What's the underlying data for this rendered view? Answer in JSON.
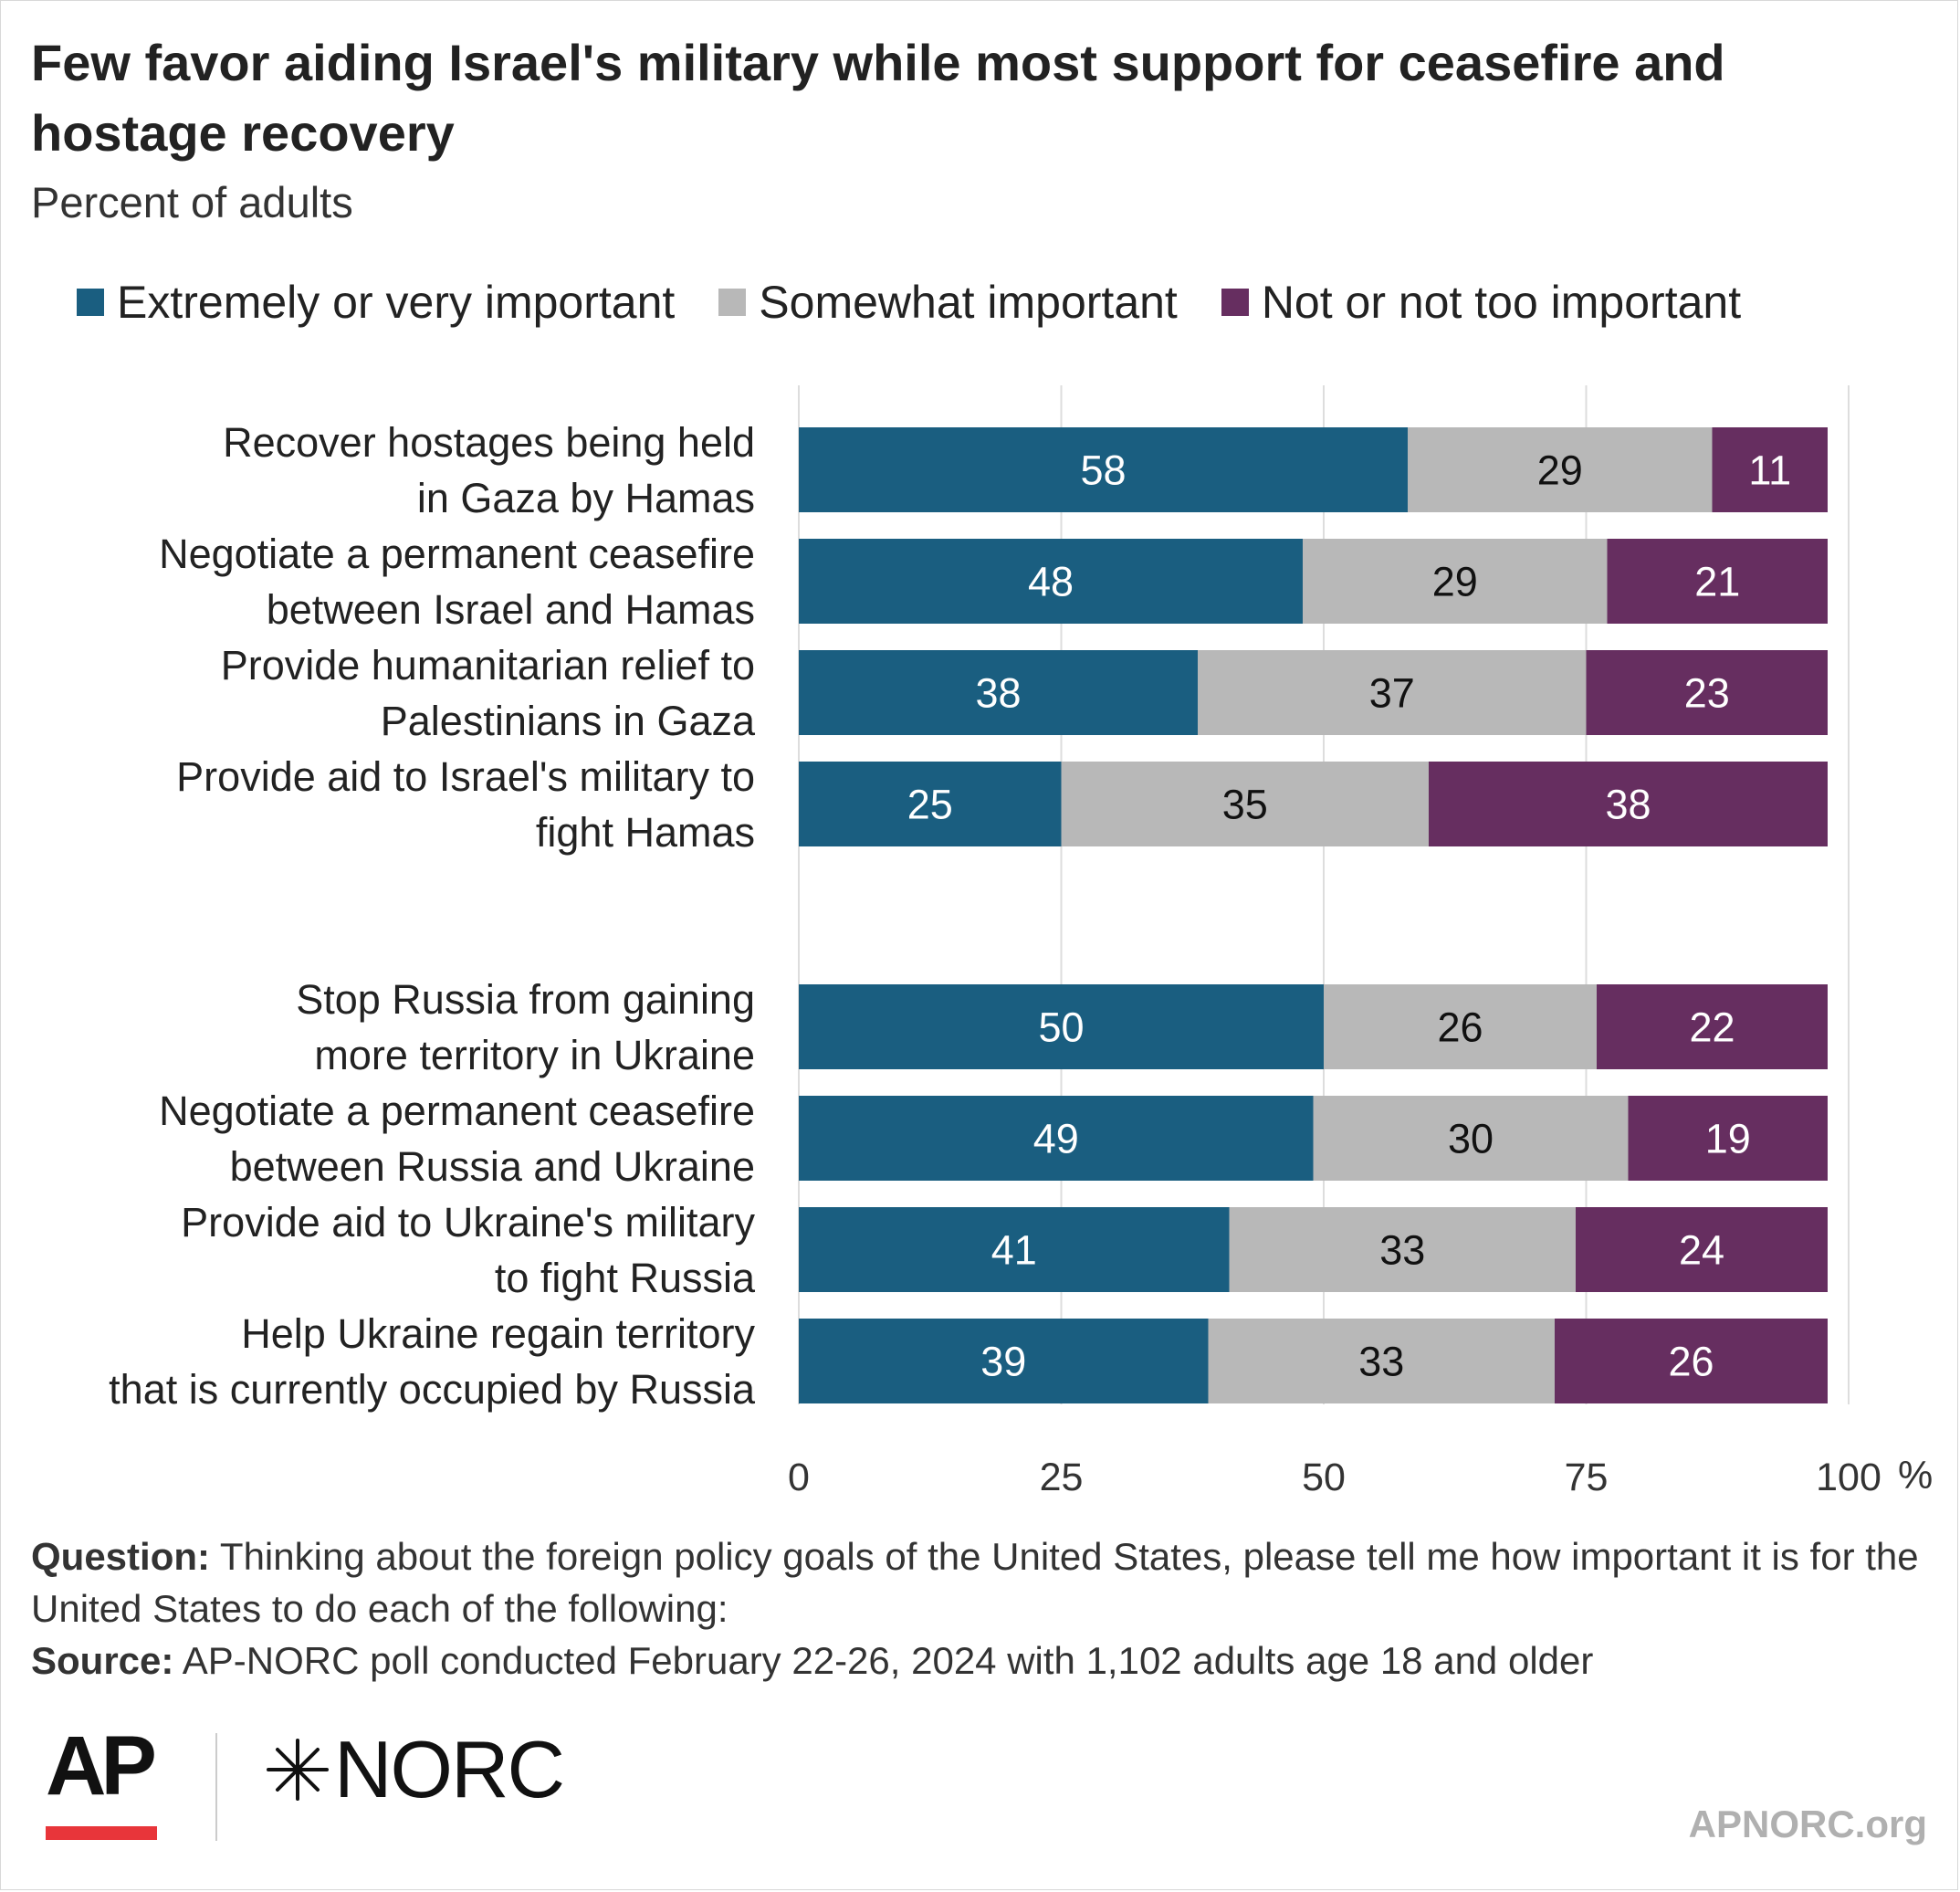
{
  "header": {
    "title": "Few favor aiding Israel's military while most support for ceasefire and hostage recovery",
    "subtitle": "Percent of adults"
  },
  "colors": {
    "extremely": "#1a5e80",
    "somewhat": "#b8b8b8",
    "not": "#662e60",
    "grid": "#dddddd"
  },
  "chart_data": {
    "type": "bar",
    "orientation": "horizontal",
    "stacked": true,
    "categories": [
      "Recover hostages being held in Gaza by Hamas",
      "Negotiate a permanent ceasefire between Israel and Hamas",
      "Provide humanitarian relief to Palestinians in Gaza",
      "Provide aid to Israel's military to fight Hamas",
      "Stop Russia from gaining more territory in Ukraine",
      "Negotiate a permanent ceasefire between Russia and Ukraine",
      "Provide aid to Ukraine's military to fight Russia",
      "Help Ukraine regain territory that is currently occupied by Russia"
    ],
    "category_lines": [
      [
        "Recover hostages being held",
        "in Gaza by Hamas"
      ],
      [
        "Negotiate a permanent ceasefire",
        "between Israel and Hamas"
      ],
      [
        "Provide humanitarian relief to",
        "Palestinians in Gaza"
      ],
      [
        "Provide aid to Israel's military to",
        "fight Hamas"
      ],
      [
        "Stop Russia from gaining",
        "more territory in Ukraine"
      ],
      [
        "Negotiate a permanent ceasefire",
        "between Russia and Ukraine"
      ],
      [
        "Provide aid to Ukraine's military",
        "to fight Russia"
      ],
      [
        "Help Ukraine regain territory",
        "that is currently occupied by Russia"
      ]
    ],
    "groups": [
      [
        0,
        1,
        2,
        3
      ],
      [
        4,
        5,
        6,
        7
      ]
    ],
    "series": [
      {
        "name": "Extremely or very important",
        "values": [
          58,
          48,
          38,
          25,
          50,
          49,
          41,
          39
        ]
      },
      {
        "name": "Somewhat important",
        "values": [
          29,
          29,
          37,
          35,
          26,
          30,
          33,
          33
        ]
      },
      {
        "name": "Not or not too important",
        "values": [
          11,
          21,
          23,
          38,
          22,
          19,
          24,
          26
        ]
      }
    ],
    "xlim": [
      0,
      100
    ],
    "xticks": [
      0,
      25,
      50,
      75,
      100
    ],
    "xtick_labels": [
      "0",
      "25",
      "50",
      "75",
      "100"
    ],
    "x_unit": "%",
    "grid": true,
    "legend_position": "top"
  },
  "notes": {
    "question_label": "Question:",
    "question_text": "Thinking about the foreign policy goals of the United States, please tell me how important it is for the United States to do each of the following:",
    "source_label": "Source:",
    "source_text": "AP-NORC poll conducted February 22-26, 2024 with 1,102 adults age 18 and older"
  },
  "branding": {
    "ap_logo": "AP",
    "norc_mark": "✶",
    "norc_logo": "NORC",
    "site": "APNORC.org"
  }
}
